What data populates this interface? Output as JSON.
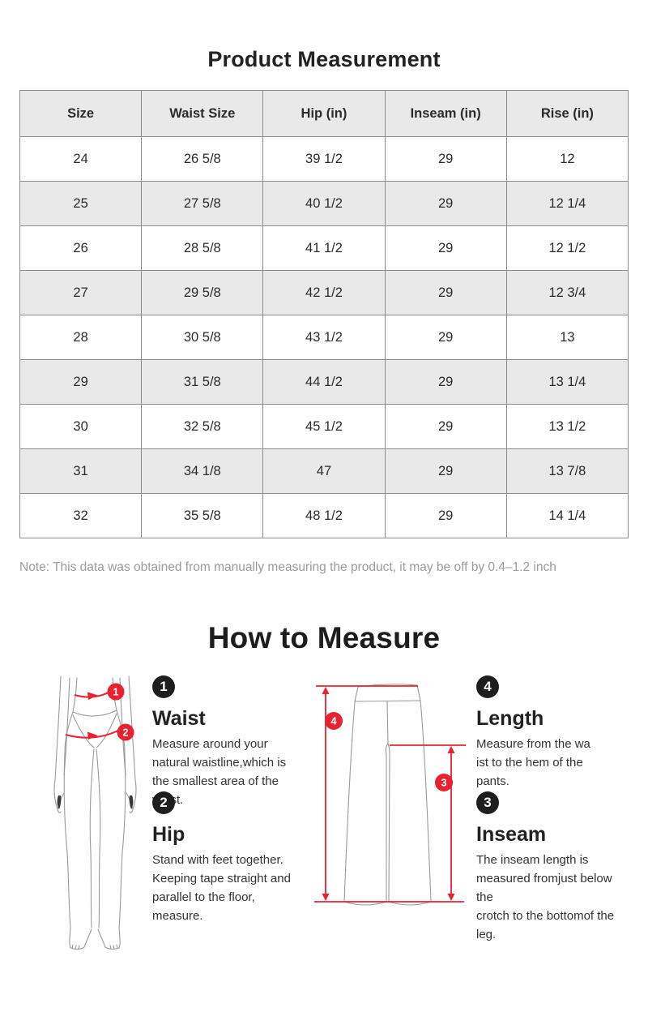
{
  "page": {
    "title": "Product Measurement",
    "note": "Note: This data was obtained from manually measuring the product, it may be off by 0.4–1.2 inch"
  },
  "colors": {
    "accent_red": "#e8222e",
    "figure_line": "#9a9a9a",
    "table_border": "#8c8c8c",
    "shaded_row_bg": "#e9e9e9",
    "note_gray": "#9b9b9b",
    "badge_black": "#1e1e1e"
  },
  "table": {
    "headers": [
      "Size",
      "Waist Size",
      "Hip (in)",
      "Inseam (in)",
      "Rise (in)"
    ],
    "rows": [
      [
        "24",
        "26 5/8",
        "39 1/2",
        "29",
        "12"
      ],
      [
        "25",
        "27 5/8",
        "40 1/2",
        "29",
        "12 1/4"
      ],
      [
        "26",
        "28 5/8",
        "41 1/2",
        "29",
        "12 1/2"
      ],
      [
        "27",
        "29 5/8",
        "42 1/2",
        "29",
        "12 3/4"
      ],
      [
        "28",
        "30 5/8",
        "43 1/2",
        "29",
        "13"
      ],
      [
        "29",
        "31 5/8",
        "44 1/2",
        "29",
        "13 1/4"
      ],
      [
        "30",
        "32 5/8",
        "45 1/2",
        "29",
        "13 1/2"
      ],
      [
        "31",
        "34 1/8",
        "47",
        "29",
        "13 7/8"
      ],
      [
        "32",
        "35 5/8",
        "48 1/2",
        "29",
        "14 1/4"
      ]
    ]
  },
  "how_to_measure": {
    "title": "How to Measure",
    "items": [
      {
        "number": "1",
        "title": "Waist",
        "description": "Measure around your\nnatural waistline,which is\nthe smallest area of the\nwaist."
      },
      {
        "number": "2",
        "title": "Hip",
        "description": "Stand with feet together.\nKeeping tape straight and\nparallel to the floor,\nmeasure."
      },
      {
        "number": "4",
        "title": "Length",
        "description": "Measure from the wa\nist to the hem of the\npants."
      },
      {
        "number": "3",
        "title": "Inseam",
        "description": "The inseam length is\nmeasured fromjust below the\ncrotch to the bottomof the leg."
      }
    ],
    "figure_labels": {
      "waist": "1",
      "hip": "2",
      "length": "4",
      "inseam": "3"
    }
  }
}
